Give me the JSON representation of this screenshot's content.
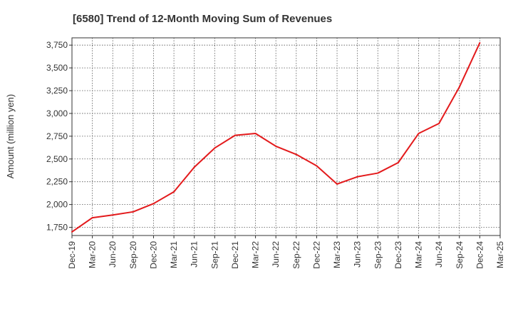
{
  "chart_data": {
    "type": "line",
    "title": "[6580]  Trend of 12-Month Moving Sum of Revenues",
    "xlabel": "",
    "ylabel": "Amount (million yen)",
    "ylim": [
      1660,
      3830
    ],
    "yticks": [
      1750,
      2000,
      2250,
      2500,
      2750,
      3000,
      3250,
      3500,
      3750
    ],
    "ytick_labels": [
      "1,750",
      "2,000",
      "2,250",
      "2,500",
      "2,750",
      "3,000",
      "3,250",
      "3,500",
      "3,750"
    ],
    "xticks": [
      "Dec-19",
      "Mar-20",
      "Jun-20",
      "Sep-20",
      "Dec-20",
      "Mar-21",
      "Jun-21",
      "Sep-21",
      "Dec-21",
      "Mar-22",
      "Jun-22",
      "Sep-22",
      "Dec-22",
      "Mar-23",
      "Jun-23",
      "Sep-23",
      "Dec-23",
      "Mar-24",
      "Jun-24",
      "Sep-24",
      "Dec-24",
      "Mar-25"
    ],
    "grid": true,
    "legend": "none",
    "series": [
      {
        "color": "#e31a1c",
        "x": [
          "Dec-19",
          "Mar-20",
          "Jun-20",
          "Sep-20",
          "Dec-20",
          "Mar-21",
          "Jun-21",
          "Sep-21",
          "Dec-21",
          "Mar-22",
          "Jun-22",
          "Sep-22",
          "Dec-22",
          "Mar-23",
          "Jun-23",
          "Sep-23",
          "Dec-23",
          "Mar-24",
          "Jun-24",
          "Sep-24",
          "Dec-24"
        ],
        "values": [
          1700,
          1855,
          1885,
          1920,
          2010,
          2140,
          2410,
          2620,
          2760,
          2780,
          2640,
          2550,
          2425,
          2225,
          2305,
          2345,
          2460,
          2780,
          2890,
          3290,
          3775
        ]
      }
    ]
  }
}
